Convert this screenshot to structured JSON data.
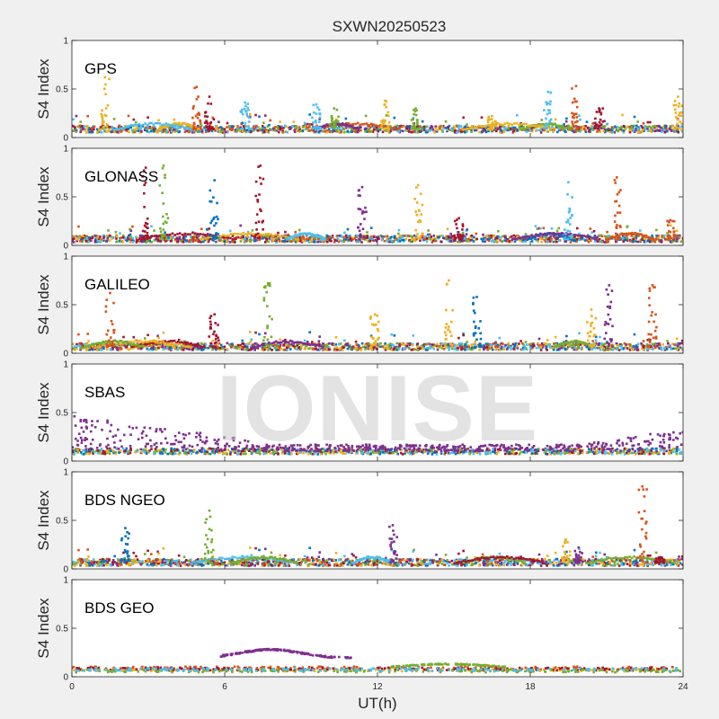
{
  "chart_data": {
    "type": "scatter",
    "title": "SXWN20250523",
    "xlabel": "UT(h)",
    "ylabel": "S4 Index",
    "xlim": [
      0,
      24
    ],
    "ylim": [
      0,
      1
    ],
    "xticks": [
      "0",
      "6",
      "12",
      "18",
      "24"
    ],
    "yticks": [
      "0",
      "0.5",
      "1"
    ],
    "watermark": "IONISE",
    "colors": [
      "#0072bd",
      "#d95319",
      "#edb120",
      "#7e2f8e",
      "#77ac30",
      "#4dbeee",
      "#a2142f"
    ],
    "panels": [
      {
        "name": "GPS",
        "baseline": 0.08,
        "spikes": [
          [
            1.3,
            0.62,
            2
          ],
          [
            4.9,
            0.52,
            1
          ],
          [
            5.4,
            0.42,
            6
          ],
          [
            6.8,
            0.36,
            5
          ],
          [
            9.6,
            0.34,
            5
          ],
          [
            10.3,
            0.3,
            4
          ],
          [
            12.3,
            0.38,
            2
          ],
          [
            13.5,
            0.3,
            4
          ],
          [
            16.5,
            0.22,
            2
          ],
          [
            18.7,
            0.47,
            5
          ],
          [
            19.8,
            0.53,
            1
          ],
          [
            20.7,
            0.3,
            6
          ],
          [
            23.8,
            0.42,
            2
          ]
        ]
      },
      {
        "name": "GLONASS",
        "baseline": 0.06,
        "spikes": [
          [
            2.9,
            0.8,
            6
          ],
          [
            3.6,
            0.82,
            4
          ],
          [
            5.6,
            0.67,
            0
          ],
          [
            7.4,
            0.82,
            6
          ],
          [
            11.4,
            0.6,
            3
          ],
          [
            13.6,
            0.62,
            2
          ],
          [
            15.2,
            0.28,
            6
          ],
          [
            19.5,
            0.65,
            5
          ],
          [
            21.4,
            0.7,
            1
          ],
          [
            23.5,
            0.26,
            1
          ]
        ]
      },
      {
        "name": "GALILEO",
        "baseline": 0.06,
        "spikes": [
          [
            1.5,
            0.62,
            1
          ],
          [
            5.6,
            0.4,
            6
          ],
          [
            7.7,
            0.72,
            4
          ],
          [
            11.9,
            0.4,
            2
          ],
          [
            14.8,
            0.75,
            2
          ],
          [
            15.9,
            0.58,
            0
          ],
          [
            20.4,
            0.45,
            2
          ],
          [
            21.1,
            0.7,
            3
          ],
          [
            22.8,
            0.7,
            1
          ]
        ]
      },
      {
        "name": "SBAS",
        "baseline": 0.1,
        "spikes": []
      },
      {
        "name": "BDS NGEO",
        "baseline": 0.06,
        "spikes": [
          [
            2.1,
            0.42,
            0
          ],
          [
            5.4,
            0.6,
            4
          ],
          [
            12.6,
            0.45,
            3
          ],
          [
            19.4,
            0.3,
            2
          ],
          [
            19.9,
            0.22,
            3
          ],
          [
            22.4,
            0.85,
            1
          ],
          [
            23.1,
            0.12,
            6
          ]
        ]
      },
      {
        "name": "BDS GEO",
        "baseline": 0.08,
        "spikes": []
      }
    ]
  }
}
